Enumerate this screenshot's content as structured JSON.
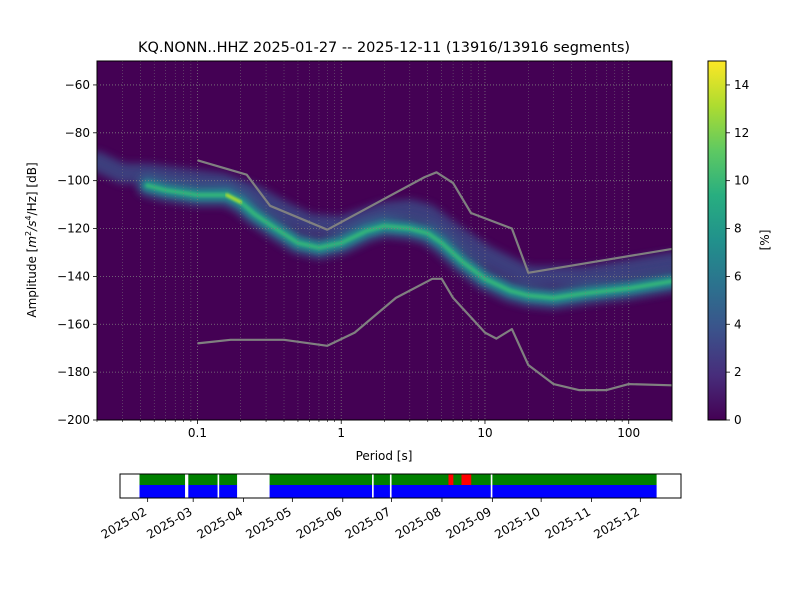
{
  "chart_data": [
    {
      "type": "heatmap",
      "title": "KQ.NONN..HHZ   2025-01-27 -- 2025-12-11  (13916/13916 segments)",
      "xlabel": "Period [s]",
      "ylabel_prefix": "Amplitude [",
      "ylabel_unit_parts": [
        "m",
        "2",
        "/s",
        "4",
        "/Hz] [dB]"
      ],
      "x_scale": "log",
      "xlim": [
        0.02,
        200
      ],
      "ylim": [
        -200,
        -50
      ],
      "x_ticks": [
        {
          "value": 0.1,
          "label": "0.1"
        },
        {
          "value": 1,
          "label": "1"
        },
        {
          "value": 10,
          "label": "10"
        },
        {
          "value": 100,
          "label": "100"
        }
      ],
      "y_ticks": [
        {
          "value": -60,
          "label": "−60"
        },
        {
          "value": -80,
          "label": "−80"
        },
        {
          "value": -100,
          "label": "−100"
        },
        {
          "value": -120,
          "label": "−120"
        },
        {
          "value": -140,
          "label": "−140"
        },
        {
          "value": -160,
          "label": "−160"
        },
        {
          "value": -180,
          "label": "−180"
        },
        {
          "value": -200,
          "label": "−200"
        }
      ],
      "grid": true,
      "colormap": "viridis",
      "colorbar": {
        "label": "[%]",
        "range": [
          0,
          15
        ],
        "ticks": [
          {
            "value": 0,
            "label": "0"
          },
          {
            "value": 2,
            "label": "2"
          },
          {
            "value": 4,
            "label": "4"
          },
          {
            "value": 6,
            "label": "6"
          },
          {
            "value": 8,
            "label": "8"
          },
          {
            "value": 10,
            "label": "10"
          },
          {
            "value": 12,
            "label": "12"
          },
          {
            "value": 14,
            "label": "14"
          }
        ]
      },
      "density_ridges": [
        {
          "name": "",
          "points": [
            [
              0.045,
              -102
            ],
            [
              0.06,
              -104
            ],
            [
              0.1,
              -106
            ],
            [
              0.16,
              -106
            ],
            [
              0.2,
              -109
            ],
            [
              0.25,
              -114
            ],
            [
              0.35,
              -120
            ],
            [
              0.5,
              -126
            ],
            [
              0.7,
              -128
            ],
            [
              1.0,
              -126
            ],
            [
              1.5,
              -121
            ],
            [
              2.0,
              -119
            ],
            [
              3.0,
              -120
            ],
            [
              4.0,
              -122
            ],
            [
              5.0,
              -126
            ],
            [
              7.0,
              -134
            ],
            [
              10,
              -141
            ],
            [
              15,
              -146
            ],
            [
              20,
              -148
            ],
            [
              30,
              -149
            ],
            [
              50,
              -147
            ],
            [
              100,
              -145
            ],
            [
              200,
              -142
            ]
          ]
        },
        {
          "name": "",
          "points": [
            [
              0.02,
              -92
            ],
            [
              0.03,
              -97
            ],
            [
              0.045,
              -97
            ],
            [
              0.08,
              -99
            ],
            [
              0.15,
              -101
            ],
            [
              0.25,
              -106
            ],
            [
              0.4,
              -113
            ],
            [
              0.6,
              -118
            ],
            [
              1.0,
              -119
            ],
            [
              2.0,
              -113
            ],
            [
              3.0,
              -112
            ],
            [
              4.0,
              -114
            ],
            [
              6.0,
              -122
            ],
            [
              10,
              -131
            ],
            [
              20,
              -140
            ],
            [
              50,
              -140
            ],
            [
              100,
              -137
            ],
            [
              200,
              -134
            ]
          ]
        }
      ],
      "series": [
        {
          "name": "",
          "x": [
            0.1,
            0.22,
            0.32,
            0.8,
            3.8,
            4.6,
            6.0,
            8.0,
            15.4,
            20.0,
            200
          ],
          "y": [
            -91.5,
            -97.5,
            -110.5,
            -120.5,
            -98.5,
            -96.5,
            -101,
            -113.5,
            -120,
            -138.5,
            -128.5
          ]
        },
        {
          "name": "",
          "x": [
            0.1,
            0.17,
            0.4,
            0.8,
            1.24,
            2.4,
            4.3,
            5.0,
            6.0,
            10,
            12,
            15.4,
            20,
            30,
            45,
            70,
            100,
            200
          ],
          "y": [
            -168,
            -166.5,
            -166.5,
            -169,
            -163.5,
            -149,
            -141,
            -141,
            -149,
            -163.5,
            -166,
            -162,
            -177,
            -185,
            -187.5,
            -187.5,
            -185,
            -185.5
          ]
        }
      ]
    },
    {
      "type": "timeline",
      "range": [
        "2025-01-15",
        "2025-12-26"
      ],
      "x_ticks": [
        {
          "date": "2025-02-01",
          "label": "2025-02"
        },
        {
          "date": "2025-03-01",
          "label": "2025-03"
        },
        {
          "date": "2025-04-01",
          "label": "2025-04"
        },
        {
          "date": "2025-05-01",
          "label": "2025-05"
        },
        {
          "date": "2025-06-01",
          "label": "2025-06"
        },
        {
          "date": "2025-07-01",
          "label": "2025-07"
        },
        {
          "date": "2025-08-01",
          "label": "2025-08"
        },
        {
          "date": "2025-09-01",
          "label": "2025-09"
        },
        {
          "date": "2025-10-01",
          "label": "2025-10"
        },
        {
          "date": "2025-11-01",
          "label": "2025-11"
        },
        {
          "date": "2025-12-01",
          "label": "2025-12"
        }
      ],
      "data_available": [
        [
          "2025-01-27",
          "2025-02-24"
        ],
        [
          "2025-02-26",
          "2025-03-16"
        ],
        [
          "2025-03-17",
          "2025-03-28"
        ],
        [
          "2025-04-17",
          "2025-06-19"
        ],
        [
          "2025-06-20",
          "2025-06-30"
        ],
        [
          "2025-07-01",
          "2025-08-31"
        ],
        [
          "2025-09-01",
          "2025-12-11"
        ]
      ],
      "flagged": [
        [
          "2025-08-05",
          "2025-08-08"
        ],
        [
          "2025-08-13",
          "2025-08-19"
        ]
      ],
      "colors": {
        "available": "#0000ff",
        "used": "#008000",
        "flagged": "#ff0000"
      }
    }
  ],
  "colors": {
    "noise_model": "#808080",
    "grid": "#808080",
    "background": "#440154"
  }
}
